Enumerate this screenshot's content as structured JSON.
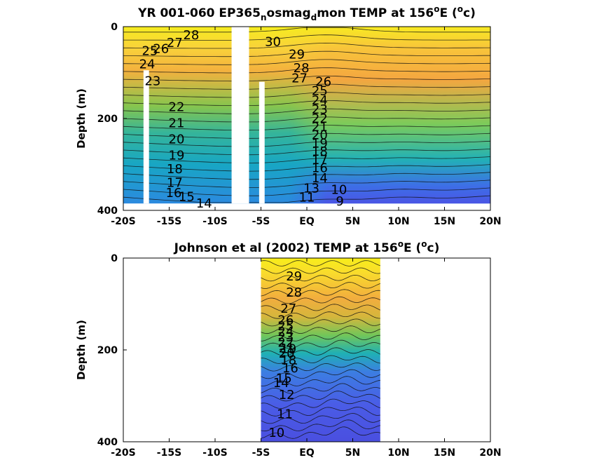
{
  "chart_data": [
    {
      "type": "contour",
      "title": {
        "main": "YR 001-060 EP365",
        "sub1": "n",
        "mid": "osmag",
        "sub2": "d",
        "tail": "mon TEMP at 156",
        "deg": "o",
        "unit_open": "E (",
        "unit_deg": "o",
        "unit_close": "c)"
      },
      "ylabel": "Depth (m)",
      "xlim": [
        -20,
        20
      ],
      "ylim": [
        400,
        0
      ],
      "x_ticks": [
        "-20S",
        "-15S",
        "-10S",
        "-5S",
        "EQ",
        "5N",
        "10N",
        "15N",
        "20N"
      ],
      "y_ticks": [
        "0",
        "200",
        "400"
      ],
      "data_extent": {
        "x": [
          -20,
          20
        ],
        "depth": [
          0,
          385
        ]
      },
      "gaps": [
        {
          "x": [
            -17.8,
            -17.2
          ],
          "depth": [
            95,
            385
          ]
        },
        {
          "x": [
            -8.2,
            -6.3
          ],
          "depth": [
            0,
            385
          ]
        },
        {
          "x": [
            -5.2,
            -4.6
          ],
          "depth": [
            120,
            385
          ]
        }
      ],
      "contour_labels": [
        {
          "text": "28",
          "lat": -12.6,
          "depth": 18
        },
        {
          "text": "27",
          "lat": -14.4,
          "depth": 35
        },
        {
          "text": "26",
          "lat": -15.9,
          "depth": 48
        },
        {
          "text": "25",
          "lat": -17.1,
          "depth": 53
        },
        {
          "text": "24",
          "lat": -17.4,
          "depth": 82
        },
        {
          "text": "23",
          "lat": -16.8,
          "depth": 118
        },
        {
          "text": "22",
          "lat": -14.2,
          "depth": 175
        },
        {
          "text": "21",
          "lat": -14.2,
          "depth": 210
        },
        {
          "text": "20",
          "lat": -14.2,
          "depth": 245
        },
        {
          "text": "19",
          "lat": -14.2,
          "depth": 280
        },
        {
          "text": "18",
          "lat": -14.4,
          "depth": 310
        },
        {
          "text": "17",
          "lat": -14.4,
          "depth": 340
        },
        {
          "text": "16",
          "lat": -14.5,
          "depth": 362
        },
        {
          "text": "15",
          "lat": -13.1,
          "depth": 370
        },
        {
          "text": "14",
          "lat": -11.2,
          "depth": 385
        },
        {
          "text": "30",
          "lat": -3.7,
          "depth": 33
        },
        {
          "text": "29",
          "lat": -1.1,
          "depth": 60
        },
        {
          "text": "28",
          "lat": -0.6,
          "depth": 90
        },
        {
          "text": "27",
          "lat": -0.8,
          "depth": 112
        },
        {
          "text": "26",
          "lat": 1.8,
          "depth": 120
        },
        {
          "text": "25",
          "lat": 1.4,
          "depth": 140
        },
        {
          "text": "24",
          "lat": 1.4,
          "depth": 160
        },
        {
          "text": "23",
          "lat": 1.4,
          "depth": 180
        },
        {
          "text": "22",
          "lat": 1.4,
          "depth": 200
        },
        {
          "text": "21",
          "lat": 1.4,
          "depth": 218
        },
        {
          "text": "20",
          "lat": 1.4,
          "depth": 236
        },
        {
          "text": "19",
          "lat": 1.4,
          "depth": 254
        },
        {
          "text": "18",
          "lat": 1.4,
          "depth": 272
        },
        {
          "text": "17",
          "lat": 1.4,
          "depth": 290
        },
        {
          "text": "16",
          "lat": 1.4,
          "depth": 308
        },
        {
          "text": "14",
          "lat": 1.4,
          "depth": 330
        },
        {
          "text": "13",
          "lat": 0.5,
          "depth": 352
        },
        {
          "text": "11",
          "lat": 0.0,
          "depth": 372
        },
        {
          "text": "10",
          "lat": 3.5,
          "depth": 355
        },
        {
          "text": "9",
          "lat": 3.6,
          "depth": 380
        }
      ]
    },
    {
      "type": "contour",
      "title": {
        "main": "Johnson et al (2002) TEMP at 156",
        "deg": "o",
        "unit_open": "E (",
        "unit_deg": "o",
        "unit_close": "c)"
      },
      "ylabel": "Depth (m)",
      "xlim": [
        -20,
        20
      ],
      "ylim": [
        400,
        0
      ],
      "x_ticks": [
        "-20S",
        "-15S",
        "-10S",
        "-5S",
        "EQ",
        "5N",
        "10N",
        "15N",
        "20N"
      ],
      "y_ticks": [
        "0",
        "200",
        "400"
      ],
      "data_extent": {
        "x": [
          -5,
          8
        ],
        "depth": [
          0,
          400
        ]
      },
      "gaps": [],
      "contour_labels": [
        {
          "text": "29",
          "lat": -1.4,
          "depth": 40
        },
        {
          "text": "28",
          "lat": -1.4,
          "depth": 75
        },
        {
          "text": "27",
          "lat": -2.0,
          "depth": 110
        },
        {
          "text": "26",
          "lat": -2.3,
          "depth": 135
        },
        {
          "text": "25",
          "lat": -2.3,
          "depth": 148
        },
        {
          "text": "24",
          "lat": -2.3,
          "depth": 160
        },
        {
          "text": "23",
          "lat": -2.3,
          "depth": 172
        },
        {
          "text": "22",
          "lat": -2.3,
          "depth": 184
        },
        {
          "text": "21",
          "lat": -2.2,
          "depth": 196
        },
        {
          "text": "20",
          "lat": -2.2,
          "depth": 208
        },
        {
          "text": "19",
          "lat": -2.0,
          "depth": 198
        },
        {
          "text": "18",
          "lat": -2.0,
          "depth": 222
        },
        {
          "text": "16",
          "lat": -1.8,
          "depth": 240
        },
        {
          "text": "15",
          "lat": -2.5,
          "depth": 262
        },
        {
          "text": "14",
          "lat": -2.8,
          "depth": 272
        },
        {
          "text": "12",
          "lat": -2.2,
          "depth": 298
        },
        {
          "text": "11",
          "lat": -2.4,
          "depth": 340
        },
        {
          "text": "10",
          "lat": -3.3,
          "depth": 380
        }
      ]
    }
  ]
}
